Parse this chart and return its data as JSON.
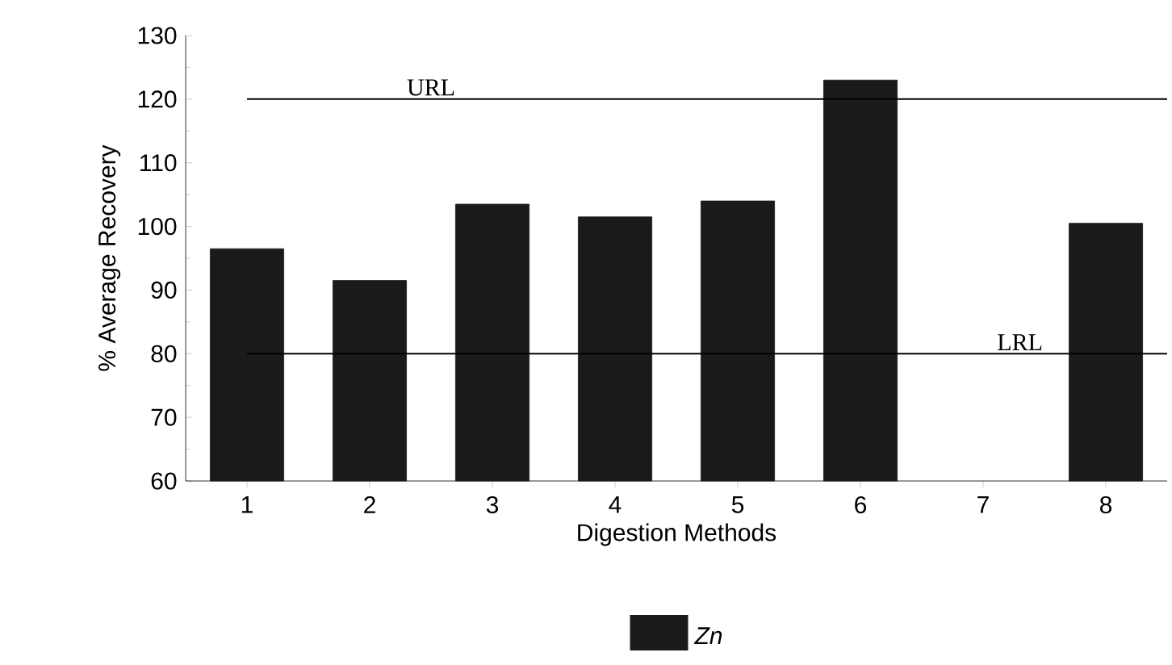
{
  "chart_data": {
    "type": "bar",
    "xlabel": "Digestion Methods",
    "ylabel": "% Average Recovery",
    "categories": [
      "1",
      "2",
      "3",
      "4",
      "5",
      "6",
      "7",
      "8"
    ],
    "series": [
      {
        "name": "Zn",
        "color": "#1a1a1a",
        "values": [
          96.5,
          91.5,
          103.5,
          101.5,
          104,
          123,
          null,
          100.5
        ]
      }
    ],
    "ylim": [
      60,
      130
    ],
    "yticks": [
      60,
      70,
      80,
      90,
      100,
      110,
      120,
      130
    ],
    "ref_lines": [
      {
        "axis": "y",
        "value": 120,
        "label": "URL"
      },
      {
        "axis": "y",
        "value": 80,
        "label": "LRL"
      }
    ],
    "grid": false,
    "legend": "bottom"
  }
}
